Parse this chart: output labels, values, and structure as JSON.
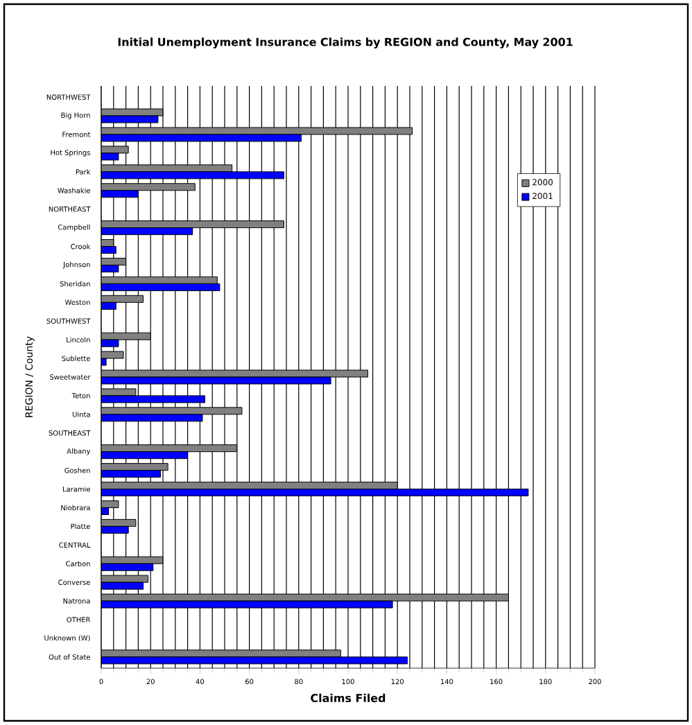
{
  "chart_data": {
    "type": "bar",
    "orientation": "horizontal",
    "title": "Initial Unemployment Insurance Claims by REGION and County, May 2001",
    "xlabel": "Claims Filed",
    "ylabel": "REGION / County",
    "categories": [
      "NORTHWEST",
      "Big Horn",
      "Fremont",
      "Hot Springs",
      "Park",
      "Washakie",
      "NORTHEAST",
      "Campbell",
      "Crook",
      "Johnson",
      "Sheridan",
      "Weston",
      "SOUTHWEST",
      "Lincoln",
      "Sublette",
      "Sweetwater",
      "Teton",
      "Uinta",
      "SOUTHEAST",
      "Albany",
      "Goshen",
      "Laramie",
      "Niobrara",
      "Platte",
      "CENTRAL",
      "Carbon",
      "Converse",
      "Natrona",
      "OTHER",
      "Unknown (W)",
      "Out of State"
    ],
    "series": [
      {
        "name": "2000",
        "color": "#808080",
        "values": [
          null,
          25,
          126,
          11,
          53,
          38,
          null,
          74,
          5,
          10,
          47,
          17,
          null,
          20,
          9,
          108,
          14,
          57,
          null,
          55,
          27,
          120,
          7,
          14,
          null,
          25,
          19,
          165,
          null,
          null,
          97
        ]
      },
      {
        "name": "2001",
        "color": "#0000ff",
        "values": [
          null,
          23,
          81,
          7,
          74,
          15,
          null,
          37,
          6,
          7,
          48,
          6,
          null,
          7,
          2,
          93,
          42,
          41,
          null,
          35,
          24,
          173,
          3,
          11,
          null,
          21,
          17,
          118,
          null,
          null,
          124
        ]
      }
    ],
    "xlim": [
      0,
      200
    ],
    "xticks": [
      0,
      20,
      40,
      60,
      80,
      100,
      120,
      140,
      160,
      180,
      200
    ],
    "grid": "x",
    "legend": "right"
  }
}
